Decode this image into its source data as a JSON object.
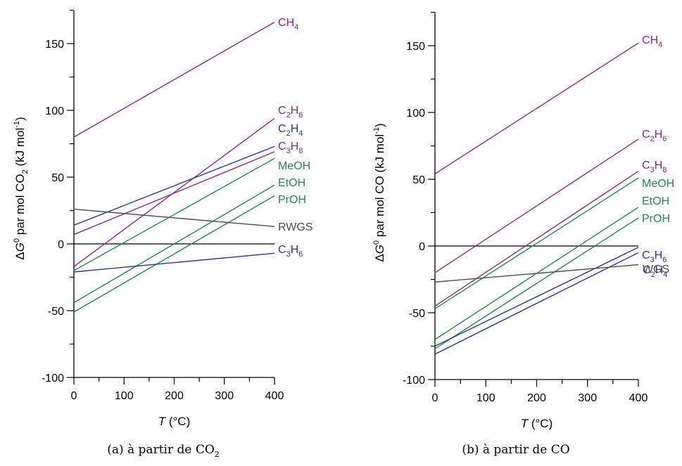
{
  "chart_data": [
    {
      "type": "line",
      "ylabel": "ΔG0 par mol CO2 (kJ mol-1)",
      "xlabel": "T (°C)",
      "caption": "(a)  à partir de CO2",
      "xlim": [
        0,
        400
      ],
      "ylim": [
        -100,
        175
      ],
      "xticks": [
        "0",
        "100",
        "200",
        "300",
        "400"
      ],
      "yticks": [
        "-100",
        "-50",
        "0",
        "50",
        "100",
        "150"
      ],
      "grid": false,
      "series": [
        {
          "name": "CH4",
          "color": "#8B2A8B",
          "x": [
            0,
            400
          ],
          "y": [
            80,
            166
          ]
        },
        {
          "name": "C2H6",
          "color": "#8B2A8B",
          "x": [
            0,
            400
          ],
          "y": [
            -17,
            94
          ]
        },
        {
          "name": "C2H4",
          "color": "#2B3990",
          "x": [
            0,
            400
          ],
          "y": [
            14,
            73
          ]
        },
        {
          "name": "C3H8",
          "color": "#8B2A8B",
          "x": [
            0,
            400
          ],
          "y": [
            7,
            69
          ]
        },
        {
          "name": "MeOH",
          "color": "#1E8C4E",
          "x": [
            0,
            400
          ],
          "y": [
            -20,
            64
          ]
        },
        {
          "name": "EtOH",
          "color": "#1E8C4E",
          "x": [
            0,
            400
          ],
          "y": [
            -44,
            44
          ]
        },
        {
          "name": "PrOH",
          "color": "#1E8C4E",
          "x": [
            0,
            400
          ],
          "y": [
            -51,
            36
          ]
        },
        {
          "name": "RWGS",
          "color": "#4D4D4D",
          "x": [
            0,
            400
          ],
          "y": [
            26,
            13
          ]
        },
        {
          "name": "C3H6",
          "color": "#2B3990",
          "x": [
            0,
            400
          ],
          "y": [
            -21,
            -7
          ]
        }
      ]
    },
    {
      "type": "line",
      "ylabel": "ΔG0 par mol CO (kJ mol-1)",
      "xlabel": "T (°C)",
      "caption": "(b)  à partir de CO",
      "xlim": [
        0,
        400
      ],
      "ylim": [
        -100,
        175
      ],
      "xticks": [
        "0",
        "100",
        "200",
        "300",
        "400"
      ],
      "yticks": [
        "-100",
        "-50",
        "0",
        "50",
        "100",
        "150"
      ],
      "grid": false,
      "series": [
        {
          "name": "CH4",
          "color": "#8B2A8B",
          "x": [
            0,
            400
          ],
          "y": [
            54,
            152
          ]
        },
        {
          "name": "C2H6",
          "color": "#8B2A8B",
          "x": [
            0,
            400
          ],
          "y": [
            -20,
            80
          ]
        },
        {
          "name": "C3H8",
          "color": "#8B2A8B",
          "x": [
            0,
            400
          ],
          "y": [
            -45,
            56
          ]
        },
        {
          "name": "MeOH",
          "color": "#1E8C4E",
          "x": [
            0,
            400
          ],
          "y": [
            -47,
            51
          ]
        },
        {
          "name": "EtOH",
          "color": "#1E8C4E",
          "x": [
            0,
            400
          ],
          "y": [
            -70,
            29
          ]
        },
        {
          "name": "PrOH",
          "color": "#1E8C4E",
          "x": [
            0,
            400
          ],
          "y": [
            -77,
            21
          ]
        },
        {
          "name": "C3H6",
          "color": "#2B3990",
          "x": [
            0,
            400
          ],
          "y": [
            -75,
            -1
          ]
        },
        {
          "name": "C2H4",
          "color": "#2B3990",
          "x": [
            0,
            400
          ],
          "y": [
            -81,
            -5
          ]
        },
        {
          "name": "WGS",
          "color": "#4D4D4D",
          "x": [
            0,
            400
          ],
          "y": [
            -27,
            -14
          ]
        }
      ]
    }
  ]
}
